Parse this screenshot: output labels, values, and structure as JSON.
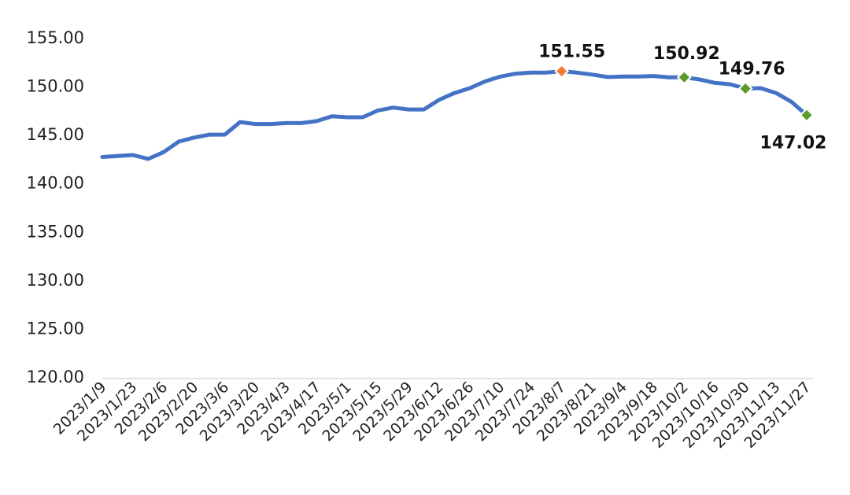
{
  "chart_data": {
    "type": "line",
    "title": "",
    "xlabel": "",
    "ylabel": "",
    "ylim": [
      120,
      155
    ],
    "y_ticks": [
      "120.00",
      "125.00",
      "130.00",
      "135.00",
      "140.00",
      "145.00",
      "150.00",
      "155.00"
    ],
    "x_tick_labels": [
      "2023/1/9",
      "2023/1/23",
      "2023/2/6",
      "2023/2/20",
      "2023/3/6",
      "2023/3/20",
      "2023/4/3",
      "2023/4/17",
      "2023/5/1",
      "2023/5/15",
      "2023/5/29",
      "2023/6/12",
      "2023/6/26",
      "2023/7/10",
      "2023/7/24",
      "2023/8/7",
      "2023/8/21",
      "2023/9/4",
      "2023/9/18",
      "2023/10/2",
      "2023/10/16",
      "2023/10/30",
      "2023/11/13",
      "2023/11/27"
    ],
    "grid": false,
    "legend": "none",
    "line_color": "#4472c4",
    "series": [
      {
        "x": [
          "2023/1/9",
          "2023/1/16",
          "2023/1/23",
          "2023/1/30",
          "2023/2/6",
          "2023/2/13",
          "2023/2/20",
          "2023/2/27",
          "2023/3/6",
          "2023/3/13",
          "2023/3/20",
          "2023/3/27",
          "2023/4/3",
          "2023/4/10",
          "2023/4/17",
          "2023/4/24",
          "2023/5/1",
          "2023/5/8",
          "2023/5/15",
          "2023/5/22",
          "2023/5/29",
          "2023/6/5",
          "2023/6/12",
          "2023/6/19",
          "2023/6/26",
          "2023/7/3",
          "2023/7/10",
          "2023/7/17",
          "2023/7/24",
          "2023/7/31",
          "2023/8/7",
          "2023/8/14",
          "2023/8/21",
          "2023/8/28",
          "2023/9/4",
          "2023/9/11",
          "2023/9/18",
          "2023/9/25",
          "2023/10/2",
          "2023/10/9",
          "2023/10/16",
          "2023/10/23",
          "2023/10/30",
          "2023/11/6",
          "2023/11/13",
          "2023/11/20",
          "2023/11/27"
        ],
        "values": [
          142.7,
          142.8,
          142.9,
          142.5,
          143.2,
          144.3,
          144.7,
          145.0,
          145.0,
          146.3,
          146.1,
          146.1,
          146.2,
          146.2,
          146.4,
          146.9,
          146.8,
          146.8,
          147.5,
          147.8,
          147.6,
          147.6,
          148.6,
          149.3,
          149.8,
          150.5,
          151.0,
          151.3,
          151.4,
          151.4,
          151.55,
          151.4,
          151.2,
          150.95,
          151.0,
          151.0,
          151.05,
          150.92,
          150.92,
          150.7,
          150.35,
          150.2,
          149.76,
          149.8,
          149.3,
          148.4,
          147.02
        ]
      }
    ],
    "annotations": [
      {
        "x": "2023/8/7",
        "value": 151.55,
        "label": "151.55",
        "marker_color": "#ed7d31"
      },
      {
        "x": "2023/10/2",
        "value": 150.92,
        "label": "150.92",
        "marker_color": "#5b9a2c"
      },
      {
        "x": "2023/10/30",
        "value": 149.76,
        "label": "149.76",
        "marker_color": "#5b9a2c"
      },
      {
        "x": "2023/11/27",
        "value": 147.02,
        "label": "147.02",
        "marker_color": "#5b9a2c"
      }
    ]
  }
}
